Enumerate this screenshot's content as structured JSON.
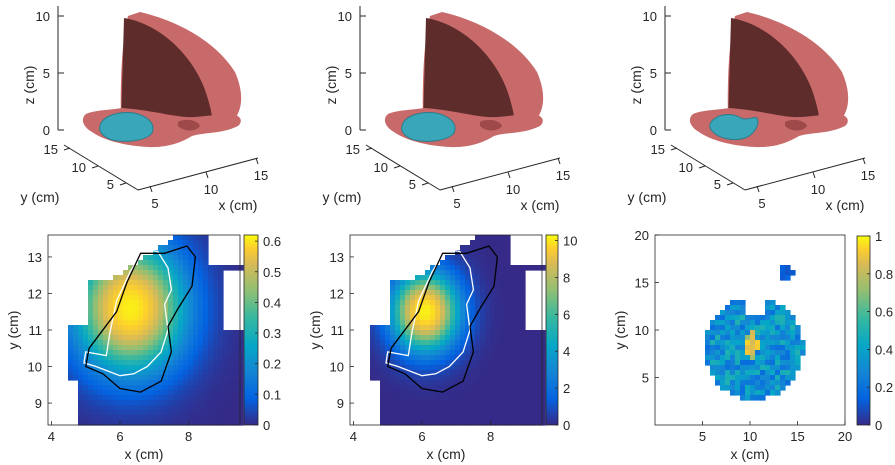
{
  "chart_data": [
    {
      "type": "surface3d",
      "panel": "top-left",
      "xlabel": "x (cm)",
      "ylabel": "y (cm)",
      "zlabel": "z (cm)",
      "x_ticks": [
        "5",
        "10",
        "15"
      ],
      "y_ticks": [
        "5",
        "10",
        "15"
      ],
      "z_ticks": [
        "0",
        "5",
        "10"
      ],
      "surfaces": [
        {
          "name": "head",
          "color": "#c86a6a"
        },
        {
          "name": "target",
          "color": "#3aa6b9"
        }
      ]
    },
    {
      "type": "surface3d",
      "panel": "top-middle",
      "xlabel": "x (cm)",
      "ylabel": "y (cm)",
      "zlabel": "z (cm)",
      "x_ticks": [
        "5",
        "10",
        "15"
      ],
      "y_ticks": [
        "5",
        "10",
        "15"
      ],
      "z_ticks": [
        "0",
        "5",
        "10"
      ],
      "surfaces": [
        {
          "name": "head",
          "color": "#c86a6a"
        },
        {
          "name": "target",
          "color": "#3aa6b9"
        }
      ]
    },
    {
      "type": "surface3d",
      "panel": "top-right",
      "xlabel": "x (cm)",
      "ylabel": "y (cm)",
      "zlabel": "z (cm)",
      "x_ticks": [
        "5",
        "10",
        "15"
      ],
      "y_ticks": [
        "5",
        "10",
        "15"
      ],
      "z_ticks": [
        "0",
        "5",
        "10"
      ],
      "surfaces": [
        {
          "name": "head",
          "color": "#c86a6a"
        },
        {
          "name": "target",
          "color": "#3aa6b9"
        }
      ]
    },
    {
      "type": "heatmap",
      "panel": "bottom-left",
      "xlabel": "x (cm)",
      "ylabel": "y (cm)",
      "xlim": [
        3.9,
        9.5
      ],
      "ylim": [
        8.4,
        13.6
      ],
      "x_ticks": [
        4,
        6,
        8
      ],
      "y_ticks": [
        9,
        10,
        11,
        12,
        13
      ],
      "colormap": "parula",
      "clim": [
        0,
        0.62
      ],
      "colorbar_ticks": [
        "0",
        "0.1",
        "0.2",
        "0.3",
        "0.4",
        "0.5",
        "0.6"
      ],
      "colorbar_values": [
        0,
        0.1,
        0.2,
        0.3,
        0.4,
        0.5,
        0.6
      ],
      "peak": {
        "x": 6.3,
        "y": 11.6,
        "value": 0.6
      },
      "spread": 1.55,
      "contours": [
        "white",
        "black"
      ]
    },
    {
      "type": "heatmap",
      "panel": "bottom-middle",
      "xlabel": "x (cm)",
      "ylabel": "y (cm)",
      "xlim": [
        3.9,
        9.5
      ],
      "ylim": [
        8.4,
        13.6
      ],
      "x_ticks": [
        4,
        6,
        8
      ],
      "y_ticks": [
        9,
        10,
        11,
        12,
        13
      ],
      "colormap": "parula",
      "clim": [
        0,
        10.3
      ],
      "colorbar_ticks": [
        "0",
        "2",
        "4",
        "6",
        "8",
        "10"
      ],
      "colorbar_values": [
        0,
        2,
        4,
        6,
        8,
        10
      ],
      "peak": {
        "x": 6.1,
        "y": 11.5,
        "value": 10
      },
      "spread": 0.95,
      "contours": [
        "white",
        "black"
      ]
    },
    {
      "type": "heatmap",
      "panel": "bottom-right",
      "xlabel": "x (cm)",
      "ylabel": "y (cm)",
      "xlim": [
        0,
        20
      ],
      "ylim": [
        0,
        20
      ],
      "x_ticks": [
        5,
        10,
        15,
        20
      ],
      "y_ticks": [
        5,
        10,
        15,
        20
      ],
      "colormap": "parula",
      "clim": [
        0,
        1
      ],
      "colorbar_ticks": [
        "0",
        "0.2",
        "0.4",
        "0.6",
        "0.8",
        "1"
      ],
      "colorbar_values": [
        0,
        0.2,
        0.4,
        0.6,
        0.8,
        1
      ],
      "typical_value": 0.3
    }
  ],
  "colors": {
    "head_front": "#5e2c2b",
    "head_rim": "#c86a6a",
    "target": "#3aa6b9",
    "axis": "#262626",
    "contour_white": "#ffffff",
    "contour_black": "#000000"
  }
}
